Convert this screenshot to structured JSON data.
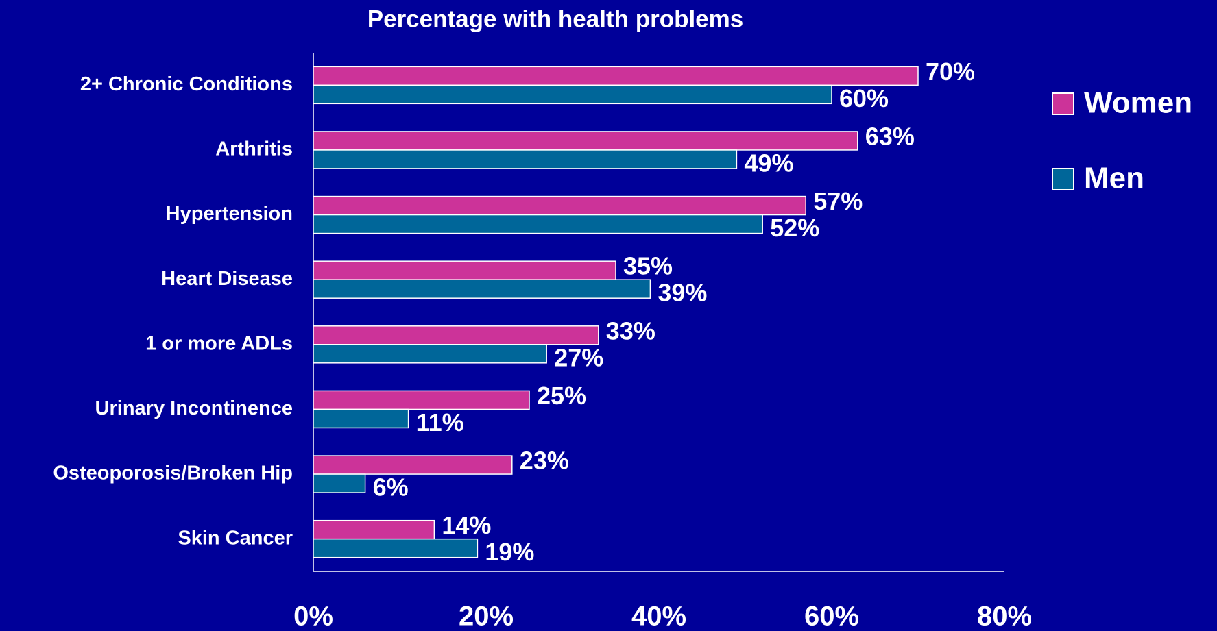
{
  "chart_data": {
    "type": "bar",
    "orientation": "horizontal",
    "title": "Percentage with health problems",
    "categories": [
      "2+ Chronic Conditions",
      "Arthritis",
      "Hypertension",
      "Heart Disease",
      "1 or more ADLs",
      "Urinary Incontinence",
      "Osteoporosis/Broken Hip",
      "Skin Cancer"
    ],
    "series": [
      {
        "name": "Women",
        "color": "#cc3399",
        "values": [
          70,
          63,
          57,
          35,
          33,
          25,
          23,
          14
        ],
        "value_labels": [
          "70%",
          "63%",
          "57%",
          "35%",
          "33%",
          "25%",
          "23%",
          "14%"
        ]
      },
      {
        "name": "Men",
        "color": "#006699",
        "values": [
          60,
          49,
          52,
          39,
          27,
          11,
          6,
          19
        ],
        "value_labels": [
          "60%",
          "49%",
          "52%",
          "39%",
          "27%",
          "11%",
          "6%",
          "19%"
        ]
      }
    ],
    "xlim": [
      0,
      80
    ],
    "xticks": [
      {
        "value": 0,
        "label": "0%"
      },
      {
        "value": 20,
        "label": "20%"
      },
      {
        "value": 40,
        "label": "40%"
      },
      {
        "value": 60,
        "label": "60%"
      },
      {
        "value": 80,
        "label": "80%"
      }
    ],
    "legend": "right"
  }
}
